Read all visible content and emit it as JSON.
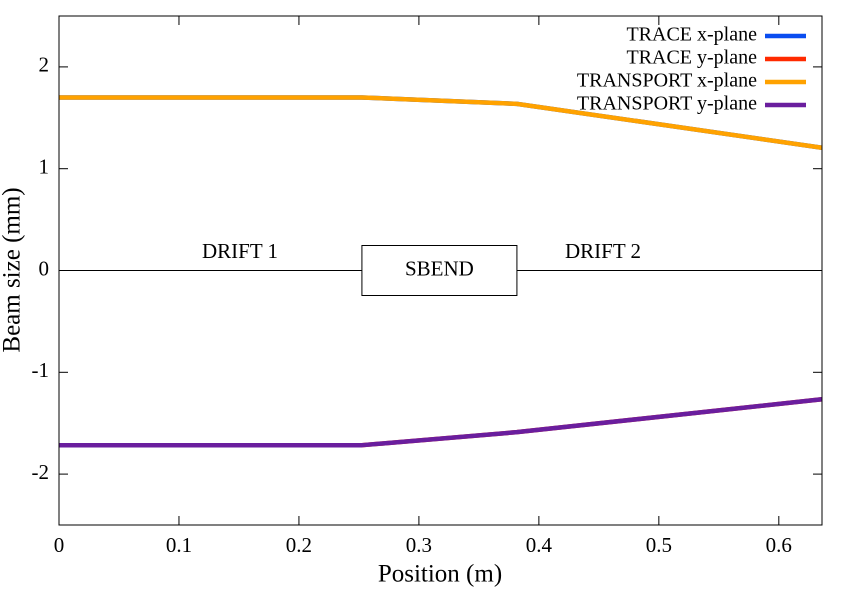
{
  "chart_data": {
    "type": "line",
    "xlabel": "Position (m)",
    "ylabel": "Beam size (mm)",
    "x": [
      0,
      0.2525,
      0.3817,
      0.636
    ],
    "series": [
      {
        "name": "TRACE x-plane",
        "color": "#0a4df0",
        "values": [
          1.7,
          1.7,
          1.637,
          1.206
        ]
      },
      {
        "name": "TRACE y-plane",
        "color": "#ff2a00",
        "values": [
          -1.716,
          -1.716,
          -1.588,
          -1.265
        ]
      },
      {
        "name": "TRANSPORT x-plane",
        "color": "#ffa200",
        "values": [
          1.7,
          1.7,
          1.637,
          1.206
        ]
      },
      {
        "name": "TRANSPORT y-plane",
        "color": "#6a1e9e",
        "values": [
          -1.716,
          -1.716,
          -1.588,
          -1.265
        ]
      }
    ],
    "xlim": [
      0,
      0.636
    ],
    "xticks": [
      0,
      0.1,
      0.2,
      0.3,
      0.4,
      0.5,
      0.6
    ],
    "ylim": [
      -2.5,
      2.5
    ],
    "yticks": [
      -2,
      -1,
      0,
      1,
      2
    ],
    "zeroaxis": true,
    "legend": "top-right",
    "annotations": [
      "DRIFT 1",
      "SBEND",
      "DRIFT 2"
    ]
  }
}
